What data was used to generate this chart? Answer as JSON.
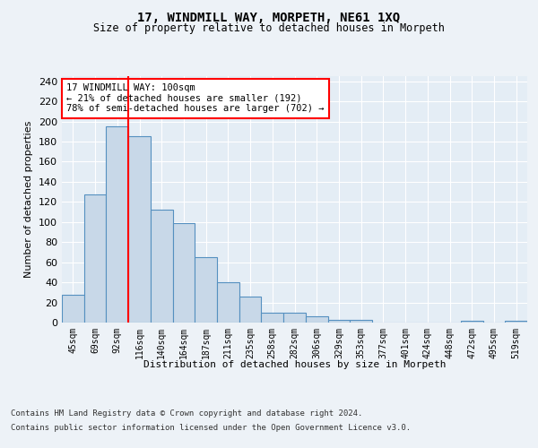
{
  "title1": "17, WINDMILL WAY, MORPETH, NE61 1XQ",
  "title2": "Size of property relative to detached houses in Morpeth",
  "xlabel": "Distribution of detached houses by size in Morpeth",
  "ylabel": "Number of detached properties",
  "categories": [
    "45sqm",
    "69sqm",
    "92sqm",
    "116sqm",
    "140sqm",
    "164sqm",
    "187sqm",
    "211sqm",
    "235sqm",
    "258sqm",
    "282sqm",
    "306sqm",
    "329sqm",
    "353sqm",
    "377sqm",
    "401sqm",
    "424sqm",
    "448sqm",
    "472sqm",
    "495sqm",
    "519sqm"
  ],
  "values": [
    28,
    127,
    195,
    185,
    112,
    99,
    65,
    40,
    26,
    10,
    10,
    6,
    3,
    3,
    0,
    0,
    0,
    0,
    2,
    0,
    2
  ],
  "bar_color": "#c8d8e8",
  "bar_edge_color": "#5590c0",
  "annotation_text": "17 WINDMILL WAY: 100sqm\n← 21% of detached houses are smaller (192)\n78% of semi-detached houses are larger (702) →",
  "annotation_box_color": "white",
  "annotation_box_edge_color": "red",
  "ylim": [
    0,
    245
  ],
  "yticks": [
    0,
    20,
    40,
    60,
    80,
    100,
    120,
    140,
    160,
    180,
    200,
    220,
    240
  ],
  "footer1": "Contains HM Land Registry data © Crown copyright and database right 2024.",
  "footer2": "Contains public sector information licensed under the Open Government Licence v3.0.",
  "bg_color": "#edf2f7",
  "plot_bg_color": "#e4edf5",
  "grid_color": "white"
}
